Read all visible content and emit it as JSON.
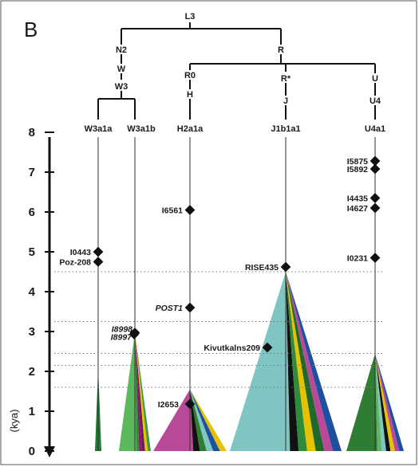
{
  "panel_letter": "B",
  "tree": {
    "root": "L3",
    "level1": [
      "N2",
      "R"
    ],
    "left_branch": [
      "W",
      "W3"
    ],
    "right_children": [
      "R0",
      "R*",
      "U"
    ],
    "r0_child": "H",
    "rstar_child": "J",
    "u_child": "U4"
  },
  "lineages": [
    "W3a1a",
    "W3a1b",
    "H2a1a",
    "J1b1a1",
    "U4a1"
  ],
  "axis": {
    "unit_label": "(kya)",
    "ticks": [
      "0",
      "1",
      "2",
      "3",
      "4",
      "5",
      "6",
      "7",
      "8"
    ],
    "range": [
      0,
      8
    ]
  },
  "samples": [
    {
      "label": "I0443",
      "lineage": "W3a1a",
      "kya": 5.0,
      "italic": false
    },
    {
      "label": "Poz-208",
      "lineage": "W3a1a",
      "kya": 4.75,
      "italic": false
    },
    {
      "label": "I8998",
      "lineage": "W3a1b",
      "kya": 2.97,
      "italic": true
    },
    {
      "label": "I8997",
      "lineage": "W3a1b",
      "kya": 2.93,
      "italic": true
    },
    {
      "label": "I6561",
      "lineage": "H2a1a",
      "kya": 6.05,
      "italic": false
    },
    {
      "label": "POST1",
      "lineage": "H2a1a",
      "kya": 3.6,
      "italic": true
    },
    {
      "label": "I2653",
      "lineage": "H2a1a",
      "kya": 1.18,
      "italic": false
    },
    {
      "label": "RISE435",
      "lineage": "J1b1a1",
      "kya": 4.62,
      "italic": false
    },
    {
      "label": "Kivutkalns209",
      "lineage": "J1b1a1",
      "kya": 2.6,
      "italic": false
    },
    {
      "label": "I5875",
      "lineage": "U4a1",
      "kya": 7.28,
      "italic": false
    },
    {
      "label": "I5892",
      "lineage": "U4a1",
      "kya": 7.08,
      "italic": false
    },
    {
      "label": "I4435",
      "lineage": "U4a1",
      "kya": 6.35,
      "italic": false
    },
    {
      "label": "I4627",
      "lineage": "U4a1",
      "kya": 6.1,
      "italic": false
    },
    {
      "label": "I0231",
      "lineage": "U4a1",
      "kya": 4.85,
      "italic": false
    }
  ],
  "expansions": [
    {
      "lineage": "W3a1a",
      "start_kya": 2.1,
      "colors": [
        "#1f7a32"
      ]
    },
    {
      "lineage": "W3a1b",
      "start_kya": 2.97,
      "colors": [
        "#5cb85c",
        "#2f8f3a",
        "#8b1a6b",
        "#6b1a5a",
        "#e6c200",
        "#3a9a46"
      ]
    },
    {
      "lineage": "H2a1a",
      "start_kya": 1.55,
      "colors": [
        "#b94a9a",
        "#111111",
        "#2e7d32",
        "#7fc6c2",
        "#1f4fa0",
        "#e6c200"
      ]
    },
    {
      "lineage": "J1b1a1",
      "start_kya": 4.5,
      "colors": [
        "#7fc6c2",
        "#111111",
        "#2e8b3a",
        "#e6c200",
        "#1f6a2a",
        "#b94a9a",
        "#1f4fa0"
      ]
    },
    {
      "lineage": "U4a1",
      "start_kya": 2.45,
      "colors": [
        "#2e7d32",
        "#5cb85c",
        "#7fc6c2",
        "#111111",
        "#e6c200",
        "#b94a9a",
        "#1f4fa0"
      ]
    }
  ],
  "dotted_guides_kya": [
    4.5,
    3.25,
    2.45,
    2.15,
    1.6
  ]
}
